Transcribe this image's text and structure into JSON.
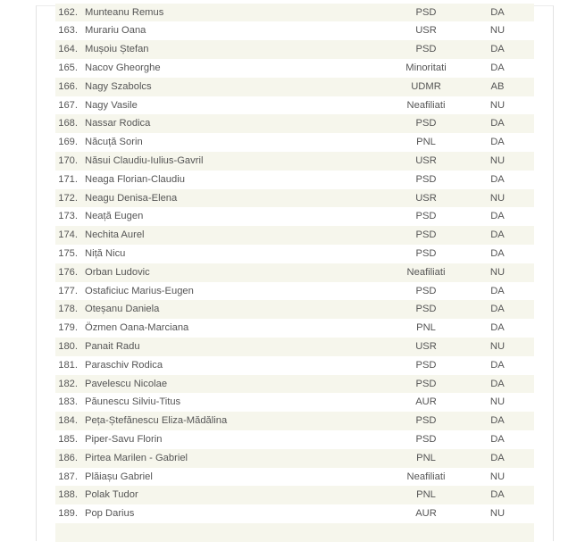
{
  "table": {
    "rows": [
      [
        "162.",
        "Munteanu Remus",
        "PSD",
        "DA"
      ],
      [
        "163.",
        "Murariu Oana",
        "USR",
        "NU"
      ],
      [
        "164.",
        "Mușoiu Ștefan",
        "PSD",
        "DA"
      ],
      [
        "165.",
        "Nacov Gheorghe",
        "Minoritati",
        "DA"
      ],
      [
        "166.",
        "Nagy Szabolcs",
        "UDMR",
        "AB"
      ],
      [
        "167.",
        "Nagy Vasile",
        "Neafiliati",
        "NU"
      ],
      [
        "168.",
        "Nassar Rodica",
        "PSD",
        "DA"
      ],
      [
        "169.",
        "Năcuță Sorin",
        "PNL",
        "DA"
      ],
      [
        "170.",
        "Năsui Claudiu-Iulius-Gavril",
        "USR",
        "NU"
      ],
      [
        "171.",
        "Neaga Florian-Claudiu",
        "PSD",
        "DA"
      ],
      [
        "172.",
        "Neagu Denisa-Elena",
        "USR",
        "NU"
      ],
      [
        "173.",
        "Neață Eugen",
        "PSD",
        "DA"
      ],
      [
        "174.",
        "Nechita Aurel",
        "PSD",
        "DA"
      ],
      [
        "175.",
        "Niță Nicu",
        "PSD",
        "DA"
      ],
      [
        "176.",
        "Orban Ludovic",
        "Neafiliati",
        "NU"
      ],
      [
        "177.",
        "Ostaficiuc Marius-Eugen",
        "PSD",
        "DA"
      ],
      [
        "178.",
        "Oteșanu Daniela",
        "PSD",
        "DA"
      ],
      [
        "179.",
        "Özmen Oana-Marciana",
        "PNL",
        "DA"
      ],
      [
        "180.",
        "Panait Radu",
        "USR",
        "NU"
      ],
      [
        "181.",
        "Paraschiv Rodica",
        "PSD",
        "DA"
      ],
      [
        "182.",
        "Pavelescu Nicolae",
        "PSD",
        "DA"
      ],
      [
        "183.",
        "Păunescu Silviu-Titus",
        "AUR",
        "NU"
      ],
      [
        "184.",
        "Peța-Ștefănescu Eliza-Mădălina",
        "PSD",
        "DA"
      ],
      [
        "185.",
        "Piper-Savu Florin",
        "PSD",
        "DA"
      ],
      [
        "186.",
        "Pirtea Marilen - Gabriel",
        "PNL",
        "DA"
      ],
      [
        "187.",
        "Plăiașu Gabriel",
        "Neafiliati",
        "NU"
      ],
      [
        "188.",
        "Polak Tudor",
        "PNL",
        "DA"
      ],
      [
        "189.",
        "Pop Darius",
        "AUR",
        "NU"
      ]
    ]
  }
}
